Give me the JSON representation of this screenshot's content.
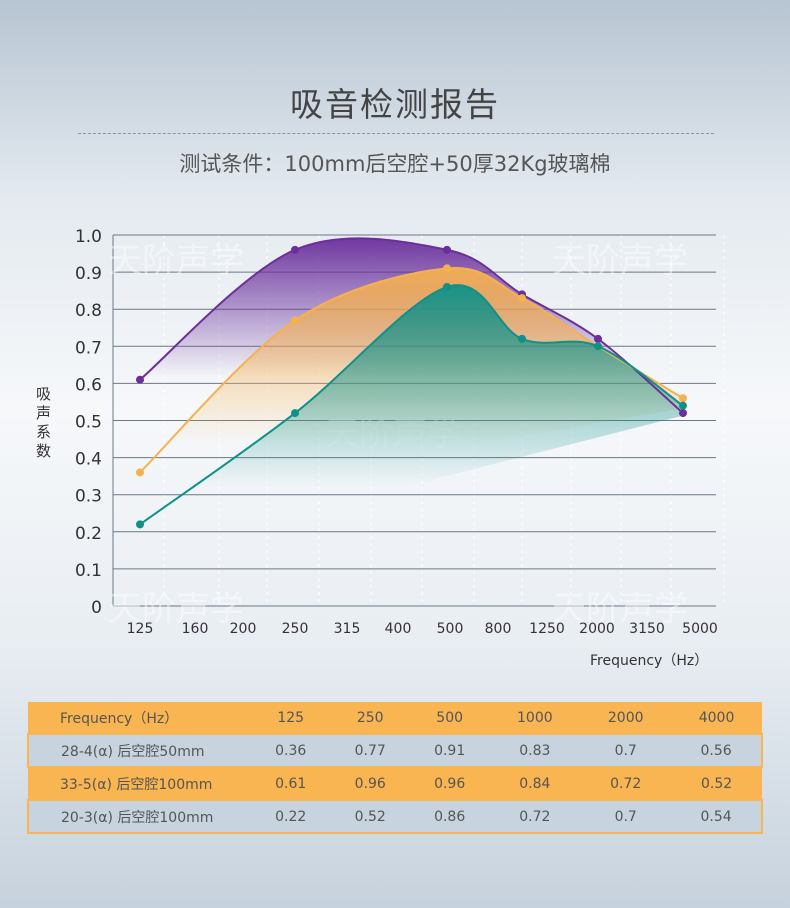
{
  "title": "吸音检测报告",
  "subtitle": "测试条件：100mm后空腔+50厚32Kg玻璃棉",
  "watermark": "天阶声学",
  "chart_data": {
    "type": "area",
    "xlabel": "Frequency（Hz）",
    "ylabel": "吸声系数",
    "x_tick_labels": [
      "125",
      "160",
      "200",
      "250",
      "315",
      "400",
      "500",
      "800",
      "1250",
      "2000",
      "3150",
      "5000"
    ],
    "y_ticks": [
      "0",
      "0.1",
      "0.2",
      "0.3",
      "0.4",
      "0.5",
      "0.6",
      "0.7",
      "0.8",
      "0.9",
      "1.0"
    ],
    "ylim": [
      0,
      1.0
    ],
    "grid": "horizontal",
    "x": [
      125,
      250,
      500,
      1000,
      2000,
      4000
    ],
    "series": [
      {
        "values": [
          0.61,
          0.96,
          0.96,
          0.84,
          0.72,
          0.52
        ],
        "color": "#6a2f9c"
      },
      {
        "values": [
          0.36,
          0.77,
          0.91,
          0.83,
          0.7,
          0.56
        ],
        "color": "#f6b14f"
      },
      {
        "values": [
          0.22,
          0.52,
          0.86,
          0.72,
          0.7,
          0.54
        ],
        "color": "#0f918a"
      }
    ]
  },
  "table": {
    "header": [
      "Frequency（Hz）",
      "125",
      "250",
      "500",
      "1000",
      "2000",
      "4000"
    ],
    "rows": [
      [
        "28-4(α) 后空腔50mm",
        "0.36",
        "0.77",
        "0.91",
        "0.83",
        "0.7",
        "0.56"
      ],
      [
        "33-5(α) 后空腔100mm",
        "0.61",
        "0.96",
        "0.96",
        "0.84",
        "0.72",
        "0.52"
      ],
      [
        "20-3(α) 后空腔100mm",
        "0.22",
        "0.52",
        "0.86",
        "0.72",
        "0.7",
        "0.54"
      ]
    ]
  }
}
